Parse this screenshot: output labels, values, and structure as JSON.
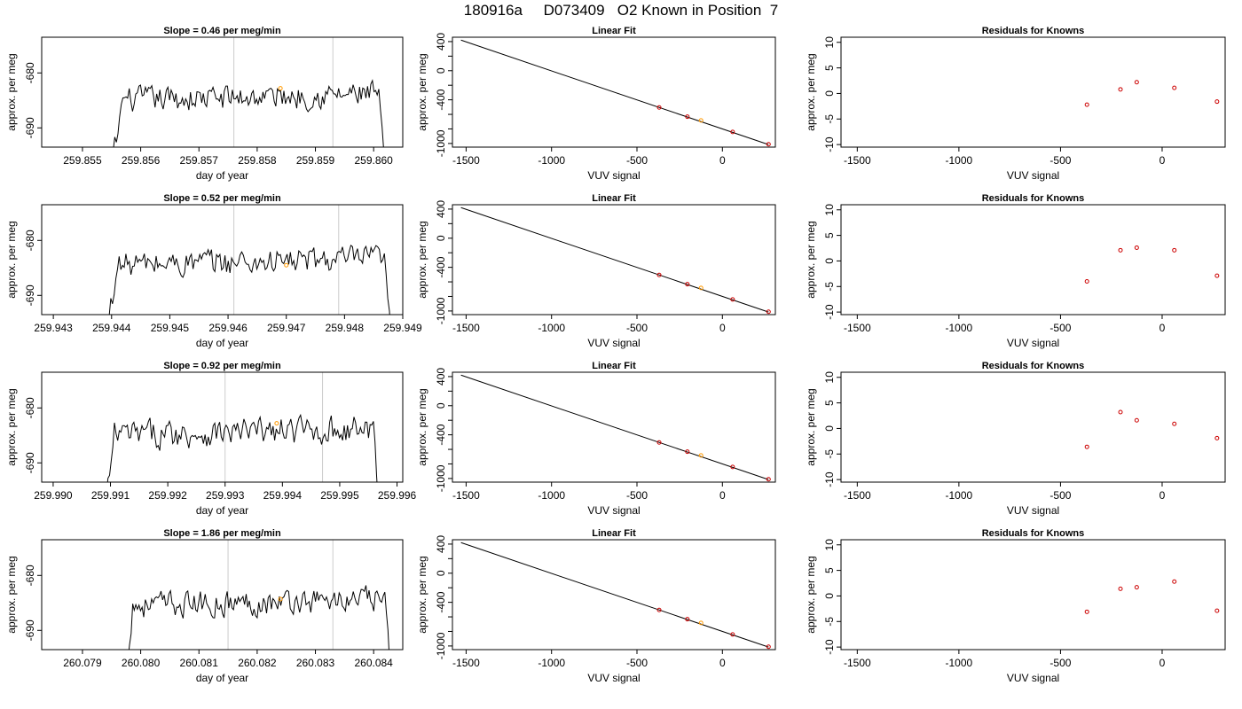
{
  "title": "180916a     D073409   O2 Known in Position  7",
  "chart_data": [
    {
      "type": "line",
      "panel": "time-series",
      "row": 1,
      "title": "Slope =  0.46  per meg/min",
      "xlabel": "day of year",
      "ylabel": "approx. per meg",
      "xlim": [
        259.8543,
        259.8605
      ],
      "ylim": [
        -693.5,
        -673.5
      ],
      "xticks": [
        259.855,
        259.856,
        259.857,
        259.858,
        259.859,
        259.86
      ],
      "xtick_labels": [
        "259.855",
        "259.856",
        "259.857",
        "259.858",
        "259.859",
        "259.860"
      ],
      "yticks": [
        -690,
        -680
      ],
      "ytick_labels": [
        "-690",
        "-680"
      ],
      "vlines": [
        259.8576,
        259.8593
      ],
      "x_start": 259.8555,
      "x_end": 259.8602,
      "level": -685.0,
      "amplitude": 2.0,
      "marker": {
        "x": 259.8584,
        "y": -682.8
      }
    },
    {
      "type": "scatter",
      "panel": "linear-fit",
      "row": 1,
      "title": "Linear Fit",
      "xlabel": "VUV signal",
      "ylabel": "approx. per meg",
      "xlim": [
        -1580,
        310
      ],
      "ylim": [
        -1050,
        460
      ],
      "xticks": [
        -1500,
        -1000,
        -500,
        0
      ],
      "xtick_labels": [
        "-1500",
        "-1000",
        "-500",
        "0"
      ],
      "yticks": [
        -1000,
        -800,
        -600,
        -400,
        -200,
        0,
        200,
        400
      ],
      "ytick_labels": [
        "-1000",
        "",
        "",
        "-400",
        "",
        "0",
        "",
        "400"
      ],
      "line": {
        "x": [
          -1530,
          270
        ],
        "y": [
          420,
          -1015
        ]
      },
      "points": {
        "x": [
          -370,
          -205,
          60,
          270
        ],
        "y": [
          -505,
          -632,
          -842,
          -1010
        ]
      },
      "marker": {
        "x": -125,
        "y": -683
      }
    },
    {
      "type": "scatter",
      "panel": "residuals",
      "row": 1,
      "title": "Residuals for Knowns",
      "xlabel": "VUV signal",
      "ylabel": "approx. per meg",
      "xlim": [
        -1580,
        310
      ],
      "ylim": [
        -10.5,
        11
      ],
      "xticks": [
        -1500,
        -1000,
        -500,
        0
      ],
      "xtick_labels": [
        "-1500",
        "-1000",
        "-500",
        "0"
      ],
      "yticks": [
        -10,
        -5,
        0,
        5,
        10
      ],
      "ytick_labels": [
        "-10",
        "-5",
        "0",
        "5",
        "10"
      ],
      "points": {
        "x": [
          -370,
          -205,
          -125,
          60,
          270
        ],
        "y": [
          -2.2,
          0.8,
          2.2,
          1.1,
          -1.6
        ]
      }
    },
    {
      "type": "line",
      "panel": "time-series",
      "row": 2,
      "title": "Slope =  0.52  per meg/min",
      "xlabel": "day of year",
      "ylabel": "approx. per meg",
      "xlim": [
        259.9428,
        259.949
      ],
      "ylim": [
        -693.5,
        -673.5
      ],
      "xticks": [
        259.943,
        259.944,
        259.945,
        259.946,
        259.947,
        259.948,
        259.949
      ],
      "xtick_labels": [
        "259.943",
        "259.944",
        "259.945",
        "259.946",
        "259.947",
        "259.948",
        "259.949"
      ],
      "yticks": [
        -690,
        -680
      ],
      "ytick_labels": [
        "-690",
        "-680"
      ],
      "vlines": [
        259.9461,
        259.9479
      ],
      "x_start": 259.9439,
      "x_end": 259.9488,
      "level": -684.5,
      "amplitude": 2.1,
      "marker": {
        "x": 259.947,
        "y": -684.5
      }
    },
    {
      "type": "scatter",
      "panel": "linear-fit",
      "row": 2,
      "title": "Linear Fit",
      "xlabel": "VUV signal",
      "ylabel": "approx. per meg",
      "xlim": [
        -1580,
        310
      ],
      "ylim": [
        -1050,
        460
      ],
      "xticks": [
        -1500,
        -1000,
        -500,
        0
      ],
      "xtick_labels": [
        "-1500",
        "-1000",
        "-500",
        "0"
      ],
      "yticks": [
        -1000,
        -800,
        -600,
        -400,
        -200,
        0,
        200,
        400
      ],
      "ytick_labels": [
        "-1000",
        "",
        "",
        "-400",
        "",
        "0",
        "",
        "400"
      ],
      "line": {
        "x": [
          -1530,
          270
        ],
        "y": [
          420,
          -1015
        ]
      },
      "points": {
        "x": [
          -370,
          -205,
          60,
          270
        ],
        "y": [
          -505,
          -632,
          -842,
          -1010
        ]
      },
      "marker": {
        "x": -125,
        "y": -683
      }
    },
    {
      "type": "scatter",
      "panel": "residuals",
      "row": 2,
      "title": "Residuals for Knowns",
      "xlabel": "VUV signal",
      "ylabel": "approx. per meg",
      "xlim": [
        -1580,
        310
      ],
      "ylim": [
        -10.5,
        11
      ],
      "xticks": [
        -1500,
        -1000,
        -500,
        0
      ],
      "xtick_labels": [
        "-1500",
        "-1000",
        "-500",
        "0"
      ],
      "yticks": [
        -10,
        -5,
        0,
        5,
        10
      ],
      "ytick_labels": [
        "-10",
        "-5",
        "0",
        "5",
        "10"
      ],
      "points": {
        "x": [
          -370,
          -205,
          -125,
          60,
          270
        ],
        "y": [
          -4.0,
          2.1,
          2.6,
          2.1,
          -2.9
        ]
      }
    },
    {
      "type": "line",
      "panel": "time-series",
      "row": 3,
      "title": "Slope =  0.92  per meg/min",
      "xlabel": "day of year",
      "ylabel": "approx. per meg",
      "xlim": [
        259.9898,
        259.9961
      ],
      "ylim": [
        -693.5,
        -673.5
      ],
      "xticks": [
        259.99,
        259.991,
        259.992,
        259.993,
        259.994,
        259.995,
        259.996
      ],
      "xtick_labels": [
        "259.990",
        "259.991",
        "259.992",
        "259.993",
        "259.994",
        "259.995",
        "259.996"
      ],
      "yticks": [
        -690,
        -680
      ],
      "ytick_labels": [
        "-690",
        "-680"
      ],
      "vlines": [
        259.993,
        259.9947
      ],
      "x_start": 259.9909,
      "x_end": 259.9957,
      "level": -685.0,
      "amplitude": 2.2,
      "marker": {
        "x": 259.9939,
        "y": -682.8
      }
    },
    {
      "type": "scatter",
      "panel": "linear-fit",
      "row": 3,
      "title": "Linear Fit",
      "xlabel": "VUV signal",
      "ylabel": "approx. per meg",
      "xlim": [
        -1580,
        310
      ],
      "ylim": [
        -1050,
        460
      ],
      "xticks": [
        -1500,
        -1000,
        -500,
        0
      ],
      "xtick_labels": [
        "-1500",
        "-1000",
        "-500",
        "0"
      ],
      "yticks": [
        -1000,
        -800,
        -600,
        -400,
        -200,
        0,
        200,
        400
      ],
      "ytick_labels": [
        "-1000",
        "",
        "",
        "-400",
        "",
        "0",
        "",
        "400"
      ],
      "line": {
        "x": [
          -1530,
          270
        ],
        "y": [
          420,
          -1015
        ]
      },
      "points": {
        "x": [
          -370,
          -205,
          60,
          270
        ],
        "y": [
          -505,
          -632,
          -842,
          -1010
        ]
      },
      "marker": {
        "x": -125,
        "y": -683
      }
    },
    {
      "type": "scatter",
      "panel": "residuals",
      "row": 3,
      "title": "Residuals for Knowns",
      "xlabel": "VUV signal",
      "ylabel": "approx. per meg",
      "xlim": [
        -1580,
        310
      ],
      "ylim": [
        -10.5,
        11
      ],
      "xticks": [
        -1500,
        -1000,
        -500,
        0
      ],
      "xtick_labels": [
        "-1500",
        "-1000",
        "-500",
        "0"
      ],
      "yticks": [
        -10,
        -5,
        0,
        5,
        10
      ],
      "ytick_labels": [
        "-10",
        "-5",
        "0",
        "5",
        "10"
      ],
      "points": {
        "x": [
          -370,
          -205,
          -125,
          60,
          270
        ],
        "y": [
          -3.6,
          3.2,
          1.6,
          0.9,
          -1.9
        ]
      }
    },
    {
      "type": "line",
      "panel": "time-series",
      "row": 4,
      "title": "Slope =  1.86  per meg/min",
      "xlabel": "day of year",
      "ylabel": "approx. per meg",
      "xlim": [
        260.0783,
        260.0845
      ],
      "ylim": [
        -693.5,
        -673.5
      ],
      "xticks": [
        260.079,
        260.08,
        260.081,
        260.082,
        260.083,
        260.084
      ],
      "xtick_labels": [
        "260.079",
        "260.080",
        "260.081",
        "260.082",
        "260.083",
        "260.084"
      ],
      "yticks": [
        -690,
        -680
      ],
      "ytick_labels": [
        "-690",
        "-680"
      ],
      "vlines": [
        260.0815,
        260.0833
      ],
      "x_start": 260.0797,
      "x_end": 260.0843,
      "level": -685.5,
      "amplitude": 2.0,
      "marker": {
        "x": 260.0824,
        "y": -684.3
      }
    },
    {
      "type": "scatter",
      "panel": "linear-fit",
      "row": 4,
      "title": "Linear Fit",
      "xlabel": "VUV signal",
      "ylabel": "approx. per meg",
      "xlim": [
        -1580,
        310
      ],
      "ylim": [
        -1050,
        460
      ],
      "xticks": [
        -1500,
        -1000,
        -500,
        0
      ],
      "xtick_labels": [
        "-1500",
        "-1000",
        "-500",
        "0"
      ],
      "yticks": [
        -1000,
        -800,
        -600,
        -400,
        -200,
        0,
        200,
        400
      ],
      "ytick_labels": [
        "-1000",
        "",
        "",
        "-400",
        "",
        "0",
        "",
        "400"
      ],
      "line": {
        "x": [
          -1530,
          270
        ],
        "y": [
          420,
          -1015
        ]
      },
      "points": {
        "x": [
          -370,
          -205,
          60,
          270
        ],
        "y": [
          -505,
          -632,
          -842,
          -1010
        ]
      },
      "marker": {
        "x": -125,
        "y": -683
      }
    },
    {
      "type": "scatter",
      "panel": "residuals",
      "row": 4,
      "title": "Residuals for Knowns",
      "xlabel": "VUV signal",
      "ylabel": "approx. per meg",
      "xlim": [
        -1580,
        310
      ],
      "ylim": [
        -10.5,
        11
      ],
      "xticks": [
        -1500,
        -1000,
        -500,
        0
      ],
      "xtick_labels": [
        "-1500",
        "-1000",
        "-500",
        "0"
      ],
      "yticks": [
        -10,
        -5,
        0,
        5,
        10
      ],
      "ytick_labels": [
        "-10",
        "-5",
        "0",
        "5",
        "10"
      ],
      "points": {
        "x": [
          -370,
          -205,
          -125,
          60,
          270
        ],
        "y": [
          -3.1,
          1.4,
          1.7,
          2.8,
          -2.9
        ]
      }
    }
  ],
  "colors": {
    "series_line": "#000000",
    "vline": "#cccccc",
    "marker": "#ff9900",
    "known_point": "#cc0000",
    "axis": "#000000"
  }
}
